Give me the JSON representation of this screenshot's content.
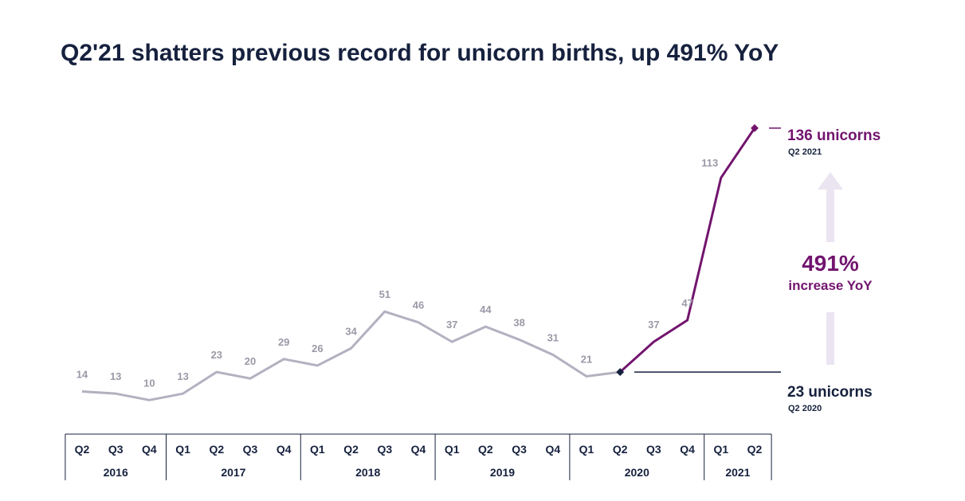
{
  "title": "Q2'21 shatters previous record for unicorn births, up 491% YoY",
  "colors": {
    "history_line": "#b3b1c0",
    "highlight_line": "#72146e",
    "text_dark": "#16213e",
    "value_label": "#9b99a7",
    "arrow": "#ebe4f1"
  },
  "chart_data": {
    "type": "line",
    "title": "Q2'21 shatters previous record for unicorn births, up 491% YoY",
    "xlabel": "",
    "ylabel": "",
    "categories": [
      "Q2",
      "Q3",
      "Q4",
      "Q1",
      "Q2",
      "Q3",
      "Q4",
      "Q1",
      "Q2",
      "Q3",
      "Q4",
      "Q1",
      "Q2",
      "Q3",
      "Q4",
      "Q1",
      "Q2",
      "Q3",
      "Q4",
      "Q1",
      "Q2"
    ],
    "years": [
      {
        "label": "2016",
        "quarters": 3
      },
      {
        "label": "2017",
        "quarters": 4
      },
      {
        "label": "2018",
        "quarters": 4
      },
      {
        "label": "2019",
        "quarters": 4
      },
      {
        "label": "2020",
        "quarters": 4
      },
      {
        "label": "2021",
        "quarters": 2
      }
    ],
    "values": [
      14,
      13,
      10,
      13,
      23,
      20,
      29,
      26,
      34,
      51,
      46,
      37,
      44,
      38,
      31,
      21,
      23,
      37,
      47,
      113,
      136
    ],
    "value_labels": [
      "14",
      "13",
      "10",
      "13",
      "23",
      "20",
      "29",
      "26",
      "34",
      "51",
      "46",
      "37",
      "44",
      "38",
      "31",
      "21",
      "",
      "37",
      "47",
      "113",
      ""
    ],
    "highlight_start_index": 16,
    "grid": false,
    "annotations": {
      "end": {
        "value": "136 unicorns",
        "sub": "Q2 2021"
      },
      "start": {
        "value": "23 unicorns",
        "sub": "Q2 2020"
      },
      "increase": {
        "value": "491%",
        "sub": "increase YoY"
      }
    }
  }
}
